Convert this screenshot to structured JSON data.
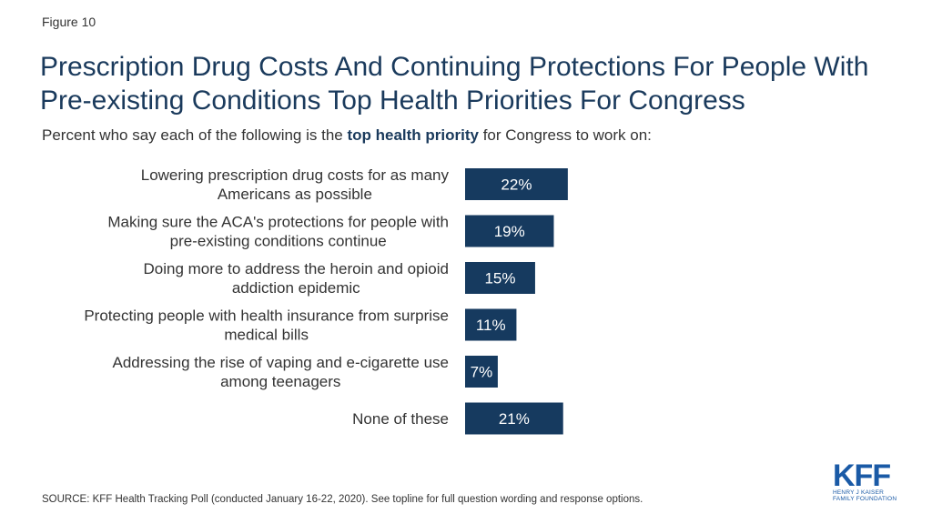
{
  "figure_label": "Figure 10",
  "title": "Prescription Drug Costs And Continuing Protections For People With Pre-existing Conditions Top Health Priorities For Congress",
  "subtitle": {
    "before": "Percent who say each of the following is the ",
    "emphasis": "top health priority",
    "after": " for Congress to work on:"
  },
  "source": "SOURCE: KFF Health Tracking Poll (conducted January 16-22, 2020). See topline for full question wording and response options.",
  "logo": {
    "mark": "KFF",
    "line1": "HENRY J KAISER",
    "line2": "FAMILY FOUNDATION"
  },
  "colors": {
    "bar": "#163a5f",
    "bar_label": "#ffffff",
    "title": "#1a3a5c",
    "logo": "#1a5aa6"
  },
  "chart_data": {
    "type": "bar",
    "orientation": "horizontal",
    "categories": [
      [
        "Lowering prescription drug costs for as many",
        "Americans as possible"
      ],
      [
        "Making sure the ACA's protections for people with",
        "pre-existing conditions continue"
      ],
      [
        "Doing more to address the heroin and opioid",
        "addiction epidemic"
      ],
      [
        "Protecting people with health insurance from surprise",
        "medical bills"
      ],
      [
        "Addressing the rise of vaping and e-cigarette use",
        "among teenagers"
      ],
      [
        "None of these"
      ]
    ],
    "values": [
      22,
      19,
      15,
      11,
      7,
      21
    ],
    "value_labels": [
      "22%",
      "19%",
      "15%",
      "11%",
      "7%",
      "21%"
    ],
    "grid": false,
    "legend": "none"
  }
}
